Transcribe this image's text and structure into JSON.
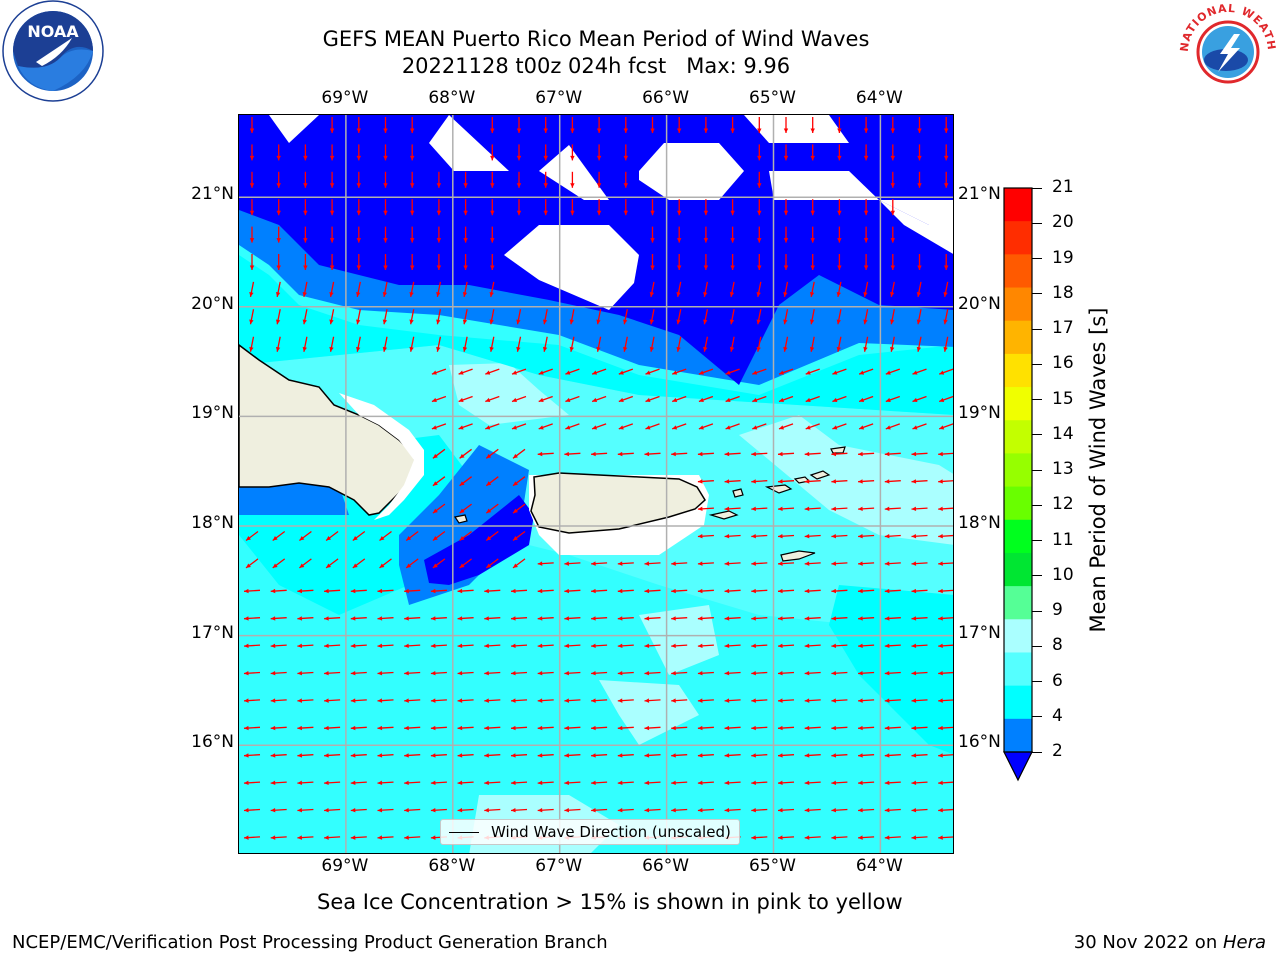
{
  "header": {
    "title_line1": "GEFS MEAN Puerto Rico Mean Period of Wind Waves",
    "title_line2": "20221128 t00z 024h fcst   Max: 9.96"
  },
  "axes": {
    "lon_ticks": [
      "69°W",
      "68°W",
      "67°W",
      "66°W",
      "65°W",
      "64°W"
    ],
    "lat_ticks": [
      "21°N",
      "20°N",
      "19°N",
      "18°N",
      "17°N",
      "16°N"
    ]
  },
  "colorbar": {
    "label": "Mean Period of Wind Waves [s]",
    "ticks": [
      "21",
      "20",
      "19",
      "18",
      "17",
      "16",
      "15",
      "14",
      "13",
      "12",
      "11",
      "10",
      "9",
      "8",
      "6",
      "4",
      "2"
    ],
    "colors": [
      "#ff0000",
      "#ff2d00",
      "#ff5a00",
      "#ff8700",
      "#ffb400",
      "#ffe100",
      "#f0ff00",
      "#c3ff00",
      "#96ff00",
      "#69ff00",
      "#00ff1e",
      "#00e632",
      "#55ff96",
      "#aaffff",
      "#55ffff",
      "#00ffff",
      "#0080ff",
      "#0000ff"
    ]
  },
  "map": {
    "ocean_colors": {
      "under_2": "#0000ff",
      "2_4": "#0080ff",
      "4_6": "#00ffff",
      "6_8": "#55ffff",
      "8_9": "#aaffff",
      "land": "#efefdf",
      "no_data": "#ffffff",
      "arrow": "#ff0000",
      "grid": "#b0b0b0"
    }
  },
  "legend": {
    "label": "Wind Wave Direction (unscaled)"
  },
  "footer": {
    "sea_ice_note": "Sea Ice Concentration > 15% is shown in pink to yellow",
    "credit": "NCEP/EMC/Verification Post Processing Product Generation Branch",
    "date_prefix": "30 Nov 2022 on ",
    "date_host": "Hera"
  },
  "logos": {
    "noaa_text": "NOAA",
    "nws_text": "NATIONAL WEATHER SERVICE"
  }
}
